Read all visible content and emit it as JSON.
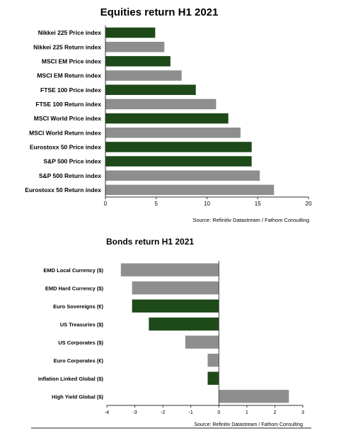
{
  "colors": {
    "price": "#1d4a18",
    "return": "#8e8e8e"
  },
  "chart_data": [
    {
      "type": "bar",
      "orientation": "horizontal",
      "title": "Equities return H1 2021",
      "categories": [
        "Nikkei 225 Price index",
        "Nikkei 225 Return index",
        "MSCI EM Price index",
        "MSCI EM Return index",
        "FTSE 100 Price index",
        "FTSE 100 Return index",
        "MSCI World Price index",
        "MSCI World Return index",
        "Eurostoxx 50 Price index",
        "S&P 500 Price index",
        "S&P 500 Return index",
        "Eurostoxx 50 Return index"
      ],
      "values": [
        4.9,
        5.8,
        6.4,
        7.5,
        8.9,
        10.9,
        12.1,
        13.3,
        14.4,
        14.4,
        15.2,
        16.6
      ],
      "bar_colors": [
        "price",
        "return",
        "price",
        "return",
        "price",
        "return",
        "price",
        "return",
        "price",
        "price",
        "return",
        "return"
      ],
      "xlim": [
        0,
        20
      ],
      "xticks": [
        "0",
        "5",
        "10",
        "15",
        "20"
      ],
      "source": "Source: Refinitiv Datastream / Fathom Consulting"
    },
    {
      "type": "bar",
      "orientation": "horizontal",
      "title": "Bonds return H1 2021",
      "categories": [
        "EMD Local Currency ($)",
        "EMD Hard Currency ($)",
        "Euro Sovereigns (€)",
        "US Treasuries ($)",
        "US Corporates ($)",
        "Euro Corporates (€)",
        "Inflation Linked Global ($)",
        "High Yield Global ($)"
      ],
      "values": [
        -3.5,
        -3.1,
        -3.1,
        -2.5,
        -1.2,
        -0.4,
        -0.4,
        2.5
      ],
      "bar_colors": [
        "return",
        "return",
        "price",
        "price",
        "return",
        "return",
        "price",
        "return"
      ],
      "xlim": [
        -4,
        3
      ],
      "xticks": [
        "-4",
        "-3",
        "-2",
        "-1",
        "0",
        "1",
        "2",
        "3"
      ],
      "source": "Source: Refinitiv Datastream / Fathom Consulting"
    }
  ]
}
